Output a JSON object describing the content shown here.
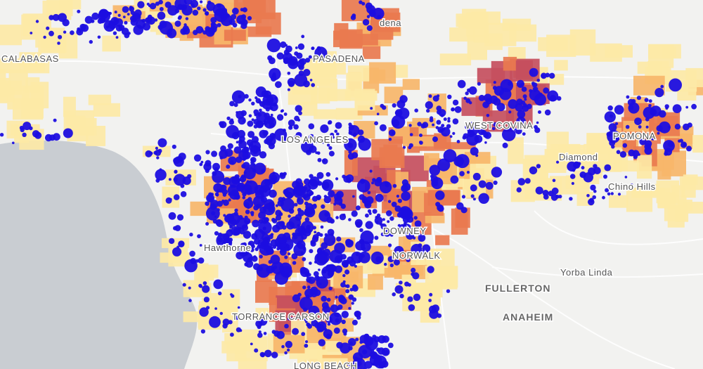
{
  "map": {
    "colors": {
      "ocean": "#c9cdd2",
      "land": "#f2f2f0",
      "road": "#ffffff",
      "choropleth_low": "#fde9a6",
      "choropleth_mid": "#f7b66a",
      "choropleth_high": "#e97a4f",
      "choropleth_top": "#c64f5e",
      "dot": "#1c0ee0"
    },
    "labels": {
      "calabasas": "CALABASAS",
      "pasadena_partial": "dena",
      "pasadena": "PASADENA",
      "los_angeles_partial": "LOS ANGELES",
      "west_covina": "WEST COVINA",
      "pomona": "POMONA",
      "diamond_bar": "Diamond",
      "chino_hills": "Chino Hills",
      "downey": "DOWNEY",
      "norwalk": "NORWALK",
      "hawthorne": "Hawthorne",
      "torrance": "TORRANCE",
      "carson": "CARSON",
      "yorba_linda": "Yorba Linda",
      "fullerton": "FULLERTON",
      "anaheim": "ANAHEIM",
      "long_beach_partial": "LONG BEACH"
    }
  }
}
